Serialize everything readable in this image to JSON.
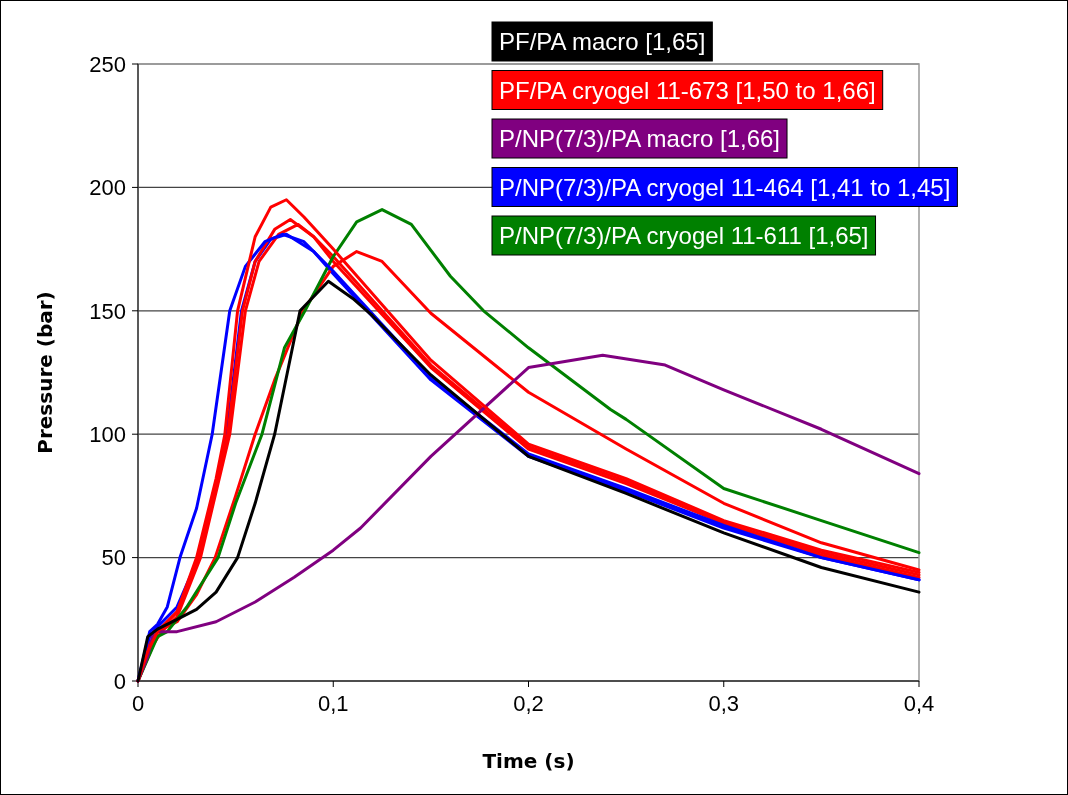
{
  "chart_data": {
    "type": "line",
    "xlabel": "Time (s)",
    "ylabel": "Pressure (bar)",
    "xlim": [
      0,
      0.4
    ],
    "xticks": [
      0,
      {
        "value": 0.1,
        "label": "0,1"
      },
      {
        "value": 0.2,
        "label": "0,2"
      },
      {
        "value": 0.3,
        "label": "0,3"
      },
      {
        "value": 0.4,
        "label": "0,4"
      }
    ],
    "ylim": [
      0,
      250
    ],
    "yticks": [
      0,
      50,
      100,
      150,
      200,
      250
    ],
    "grid": "y",
    "legend": "top right",
    "marker": "none",
    "line_style": "solid",
    "series": [
      {
        "name": "PF/PA macro [1,65]",
        "color": "#000000",
        "x": [
          0,
          0.005,
          0.01,
          0.02,
          0.03,
          0.04,
          0.051,
          0.06,
          0.07,
          0.083,
          0.0975,
          0.11,
          0.12,
          0.15,
          0.2,
          0.25,
          0.3,
          0.35,
          0.4
        ],
        "values": [
          0,
          18,
          21,
          25,
          29,
          36,
          50,
          72,
          100,
          150,
          162,
          155,
          148,
          124,
          91,
          76,
          60,
          46,
          36
        ]
      },
      {
        "name": "PF/PA cryogel 11-673 [1,50 to 1,66]",
        "color": "#ff0000",
        "x": [
          0,
          0.005,
          0.01,
          0.02,
          0.03,
          0.04,
          0.0445,
          0.051,
          0.06,
          0.068,
          0.076,
          0.085,
          0.1,
          0.15,
          0.2,
          0.25,
          0.3,
          0.35,
          0.4
        ],
        "values": [
          0,
          12,
          20,
          28,
          50,
          82,
          100,
          150,
          180,
          192,
          195,
          188,
          175,
          130,
          96,
          82,
          65,
          53,
          44
        ]
      },
      {
        "name": "P/NP(7/3)/PA macro [1,66]",
        "color": "#800080",
        "x": [
          0,
          0.005,
          0.008,
          0.02,
          0.04,
          0.06,
          0.08,
          0.1,
          0.114,
          0.15,
          0.2,
          0.238,
          0.27,
          0.3,
          0.35,
          0.4
        ],
        "values": [
          0,
          10,
          20,
          20,
          24,
          32,
          42,
          53,
          62,
          91,
          127,
          132,
          128,
          118,
          102,
          84
        ]
      },
      {
        "name": "P/NP(7/3)/PA cryogel 11-464 [1,41 to 1,45]",
        "color": "#0000ff",
        "x": [
          0,
          0.003,
          0.006,
          0.01,
          0.015,
          0.0215,
          0.03,
          0.038,
          0.047,
          0.055,
          0.065,
          0.074,
          0.085,
          0.1,
          0.15,
          0.2,
          0.25,
          0.3,
          0.35,
          0.4
        ],
        "values": [
          0,
          10,
          20,
          23,
          30,
          50,
          70,
          100,
          150,
          168,
          178,
          181,
          178,
          166,
          123,
          92,
          78,
          63,
          50,
          41
        ]
      },
      {
        "name": "P/NP(7/3)/PA cryogel 11-611 [1,65]",
        "color": "#008000",
        "x": [
          0,
          0.01,
          0.015,
          0.025,
          0.041,
          0.05,
          0.0635,
          0.075,
          0.0855,
          0.1,
          0.112,
          0.125,
          0.14,
          0.16,
          0.177,
          0.2,
          0.242,
          0.25,
          0.3,
          0.35,
          0.4
        ],
        "values": [
          0,
          18,
          20,
          30,
          50,
          72,
          100,
          135,
          150,
          172,
          186,
          191,
          185,
          164,
          150,
          135,
          110,
          106,
          78,
          65,
          52
        ]
      },
      {
        "color": "#ff0000",
        "x": [
          0,
          0.006,
          0.01,
          0.02,
          0.031,
          0.04,
          0.046,
          0.0535,
          0.06,
          0.07,
          0.078,
          0.09,
          0.1,
          0.15,
          0.2,
          0.25,
          0.3,
          0.35,
          0.4
        ],
        "values": [
          0,
          15,
          20,
          28,
          50,
          80,
          100,
          150,
          170,
          183,
          187,
          180,
          172,
          128,
          95,
          81,
          64,
          52,
          43
        ]
      },
      {
        "color": "#ff0000",
        "x": [
          0,
          0.008,
          0.012,
          0.02,
          0.032,
          0.041,
          0.047,
          0.055,
          0.062,
          0.072,
          0.082,
          0.09,
          0.1,
          0.15,
          0.2,
          0.25,
          0.3,
          0.35,
          0.4
        ],
        "values": [
          0,
          15,
          20,
          26,
          50,
          80,
          100,
          150,
          170,
          181,
          185,
          180,
          170,
          127,
          94,
          80,
          64,
          51,
          42
        ]
      },
      {
        "color": "#ff0000",
        "x": [
          0,
          0.005,
          0.01,
          0.02,
          0.03,
          0.0395,
          0.05,
          0.06,
          0.07,
          0.0845,
          0.1,
          0.112,
          0.125,
          0.15,
          0.2,
          0.25,
          0.3,
          0.35,
          0.4
        ],
        "values": [
          0,
          10,
          20,
          24,
          35,
          50,
          75,
          100,
          122,
          150,
          168,
          174,
          170,
          149,
          117,
          94,
          72,
          56,
          45
        ]
      },
      {
        "color": "#0000ff",
        "x": [
          0,
          0.006,
          0.01,
          0.02,
          0.031,
          0.04,
          0.0455,
          0.053,
          0.06,
          0.068,
          0.076,
          0.09,
          0.1,
          0.15,
          0.2,
          0.25,
          0.3,
          0.35,
          0.4
        ],
        "values": [
          0,
          18,
          22,
          30,
          50,
          80,
          100,
          150,
          170,
          179,
          181,
          174,
          165,
          122,
          91,
          77,
          62,
          50,
          41
        ]
      }
    ]
  }
}
